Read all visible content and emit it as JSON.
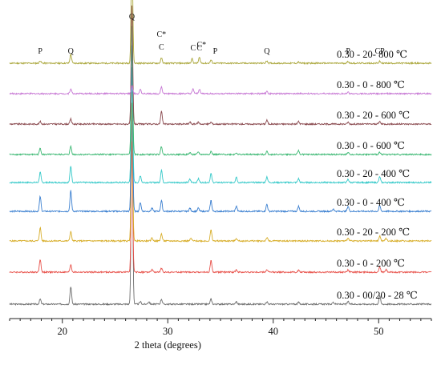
{
  "chart_data": {
    "type": "line",
    "title": "",
    "xlabel": "2 theta (degrees)",
    "ylabel": "",
    "xlim": [
      15,
      55
    ],
    "x_ticks": [
      20,
      30,
      40,
      50
    ],
    "y_axis_visible": false,
    "grid": false,
    "legend": "none (series labels printed beside each trace)",
    "series": [
      {
        "name": "0.30 - 00/20 - 28 ℃",
        "color": "#6e6e6e",
        "peaks": [
          [
            17.9,
            8
          ],
          [
            20.8,
            28
          ],
          [
            26.6,
            300
          ],
          [
            27.4,
            4
          ],
          [
            28.2,
            4
          ],
          [
            29.4,
            8
          ],
          [
            34.1,
            8
          ],
          [
            36.5,
            4
          ],
          [
            39.4,
            4
          ],
          [
            42.4,
            3
          ],
          [
            45.7,
            3
          ],
          [
            47.1,
            4
          ],
          [
            50.1,
            14
          ]
        ]
      },
      {
        "name": "0.30 - 0 - 200 ℃",
        "color": "#e8534c",
        "peaks": [
          [
            17.9,
            20
          ],
          [
            20.8,
            12
          ],
          [
            26.6,
            205
          ],
          [
            28.5,
            4
          ],
          [
            29.4,
            6
          ],
          [
            34.1,
            18
          ],
          [
            36.5,
            4
          ],
          [
            39.4,
            4
          ],
          [
            42.4,
            3
          ],
          [
            47.1,
            4
          ],
          [
            50.1,
            9
          ],
          [
            50.7,
            4
          ]
        ]
      },
      {
        "name": "0.30 - 20 - 200 ℃",
        "color": "#d8ae2a",
        "peaks": [
          [
            17.9,
            21
          ],
          [
            20.8,
            15
          ],
          [
            26.6,
            215
          ],
          [
            28.5,
            5
          ],
          [
            29.4,
            11
          ],
          [
            32.2,
            4
          ],
          [
            34.1,
            17
          ],
          [
            36.5,
            4
          ],
          [
            39.4,
            5
          ],
          [
            47.1,
            5
          ],
          [
            50.1,
            8
          ],
          [
            50.7,
            4
          ]
        ]
      },
      {
        "name": "0.30 - 0 - 400 ℃",
        "color": "#3a7fd0",
        "peaks": [
          [
            17.9,
            23
          ],
          [
            20.8,
            32
          ],
          [
            26.6,
            225
          ],
          [
            27.4,
            14
          ],
          [
            28.5,
            5
          ],
          [
            29.4,
            17
          ],
          [
            32.1,
            5
          ],
          [
            32.9,
            5
          ],
          [
            34.1,
            17
          ],
          [
            36.5,
            8
          ],
          [
            39.4,
            11
          ],
          [
            42.4,
            8
          ],
          [
            45.7,
            4
          ],
          [
            47.1,
            8
          ],
          [
            50.1,
            9
          ]
        ]
      },
      {
        "name": "0.30 - 20 - 400 ℃",
        "color": "#35c9c9",
        "peaks": [
          [
            17.9,
            16
          ],
          [
            20.8,
            26
          ],
          [
            26.6,
            215
          ],
          [
            27.4,
            11
          ],
          [
            29.4,
            20
          ],
          [
            32.1,
            5
          ],
          [
            32.9,
            6
          ],
          [
            34.1,
            14
          ],
          [
            36.5,
            9
          ],
          [
            39.4,
            9
          ],
          [
            42.4,
            6
          ],
          [
            47.1,
            5
          ],
          [
            50.1,
            9
          ]
        ]
      },
      {
        "name": "0.30 - 0 - 600 ℃",
        "color": "#3cb873",
        "peaks": [
          [
            17.9,
            10
          ],
          [
            20.8,
            13
          ],
          [
            26.6,
            200
          ],
          [
            29.4,
            13
          ],
          [
            32.1,
            3
          ],
          [
            32.9,
            4
          ],
          [
            34.1,
            5
          ],
          [
            36.5,
            3
          ],
          [
            39.4,
            5
          ],
          [
            42.4,
            6
          ],
          [
            47.1,
            3
          ],
          [
            50.1,
            4
          ]
        ]
      },
      {
        "name": "0.30 - 20 - 600 ℃",
        "color": "#8a4a4f",
        "peaks": [
          [
            17.9,
            4
          ],
          [
            20.8,
            8
          ],
          [
            26.6,
            185
          ],
          [
            29.4,
            20
          ],
          [
            32.1,
            3
          ],
          [
            32.9,
            3
          ],
          [
            34.1,
            3
          ],
          [
            39.4,
            6
          ],
          [
            42.4,
            4
          ],
          [
            47.1,
            3
          ],
          [
            50.1,
            4
          ]
        ]
      },
      {
        "name": "0.30 - 0 - 800 ℃",
        "color": "#c778d4",
        "peaks": [
          [
            20.8,
            8
          ],
          [
            26.6,
            13
          ],
          [
            27.4,
            6
          ],
          [
            29.4,
            11
          ],
          [
            32.4,
            7
          ],
          [
            33.0,
            7
          ],
          [
            39.4,
            3
          ],
          [
            47.1,
            2
          ]
        ]
      },
      {
        "name": "0.30 - 20- 800 ℃",
        "color": "#aaa63a",
        "peaks": [
          [
            17.9,
            4
          ],
          [
            20.8,
            14
          ],
          [
            26.6,
            185
          ],
          [
            29.4,
            8
          ],
          [
            32.3,
            7
          ],
          [
            33.0,
            9
          ],
          [
            34.1,
            5
          ],
          [
            39.4,
            4
          ],
          [
            42.4,
            2
          ],
          [
            47.1,
            3
          ],
          [
            50.1,
            3
          ]
        ]
      }
    ],
    "annotations": [
      {
        "text": "P",
        "x": 17.9
      },
      {
        "text": "Q",
        "x": 20.8
      },
      {
        "text": "Q",
        "x": 26.6
      },
      {
        "text": "C",
        "x": 29.4
      },
      {
        "text": "C*",
        "x": 29.4
      },
      {
        "text": "C",
        "x": 32.4
      },
      {
        "text": "C",
        "x": 33.0
      },
      {
        "text": "C*",
        "x": 33.2
      },
      {
        "text": "P",
        "x": 34.5
      },
      {
        "text": "Q",
        "x": 39.4
      },
      {
        "text": "P",
        "x": 47.1
      },
      {
        "text": "CP",
        "x": 50.1
      }
    ]
  }
}
